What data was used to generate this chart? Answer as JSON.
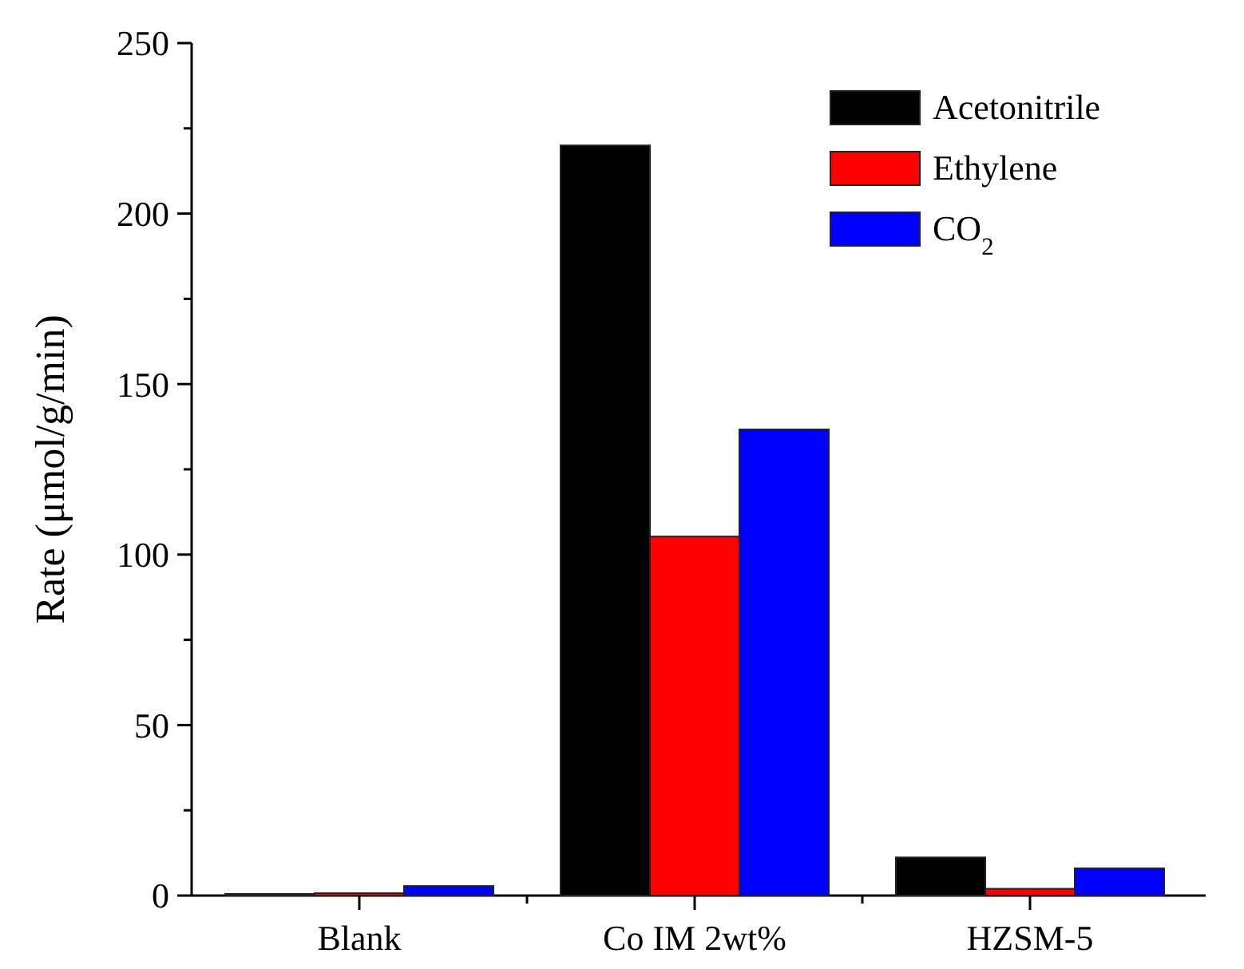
{
  "chart_data": {
    "type": "bar",
    "ylabel": "Rate (μmol/g/min)",
    "categories": [
      "Blank",
      "Co IM 2wt%",
      "HZSM-5"
    ],
    "series": [
      {
        "name": "Acetonitrile",
        "color": "#000000",
        "values": [
          0.5,
          220,
          11.2
        ]
      },
      {
        "name": "Ethylene",
        "color": "#ff0000",
        "values": [
          0.7,
          105.3,
          2
        ]
      },
      {
        "name": "CO$_{2}$",
        "color": "#0000ff",
        "values": [
          2.8,
          136.7,
          8
        ]
      }
    ],
    "ylim": [
      0,
      250
    ],
    "yticks": [
      0,
      {
        "value": 25,
        "label": null
      },
      50,
      {
        "value": 75,
        "label": null
      },
      100,
      {
        "value": 125,
        "label": null
      },
      150,
      {
        "value": 175,
        "label": null
      },
      200,
      {
        "value": 225,
        "label": null
      },
      250
    ],
    "grid": false,
    "legend": "top right"
  }
}
